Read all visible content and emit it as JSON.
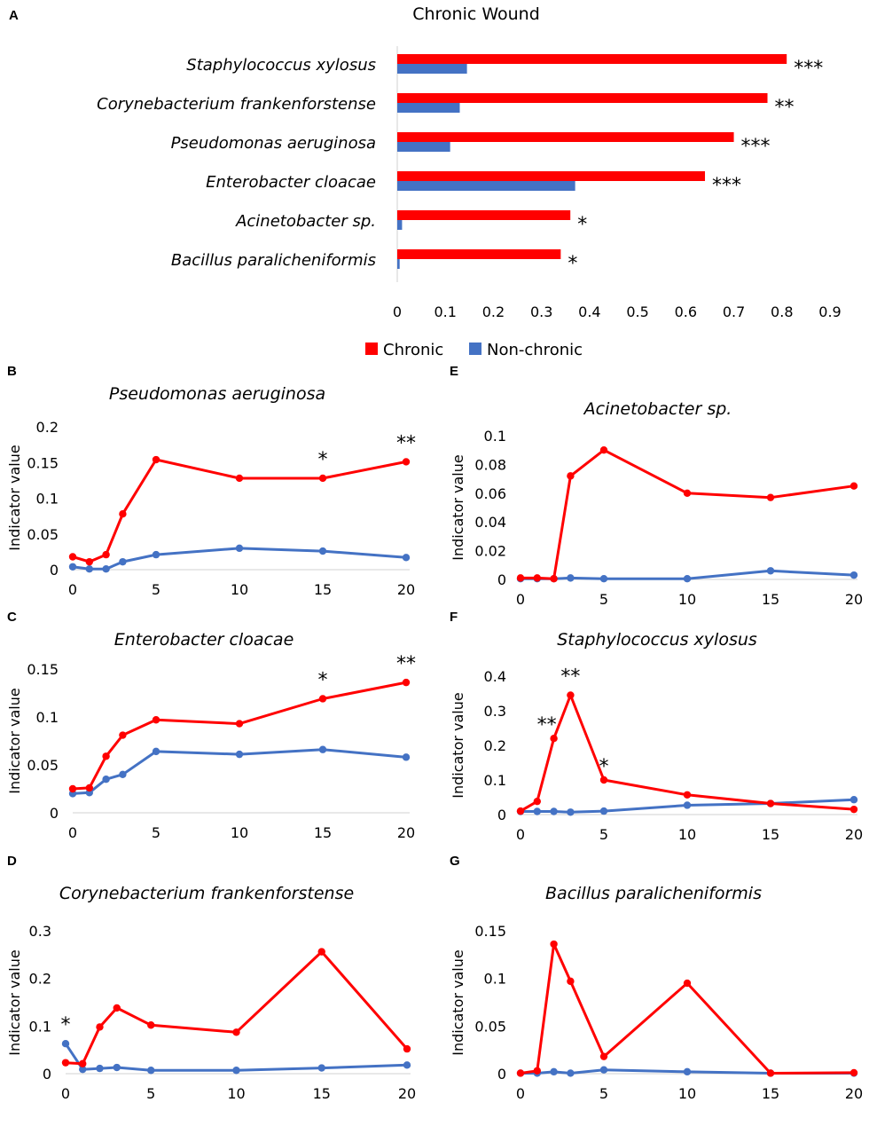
{
  "chart_data": [
    {
      "panel": "A",
      "type": "bar",
      "orientation": "horizontal",
      "title": "Chronic Wound",
      "categories": [
        "Staphylococcus xylosus",
        "Corynebacterium frankenforstense",
        "Pseudomonas aeruginosa",
        "Enterobacter cloacae",
        "Acinetobacter sp.",
        "Bacillus paralicheniformis"
      ],
      "series": [
        {
          "name": "Chronic",
          "color": "#ff0000",
          "values": [
            0.81,
            0.77,
            0.7,
            0.64,
            0.36,
            0.34
          ]
        },
        {
          "name": "Non-chronic",
          "color": "#4472c4",
          "values": [
            0.145,
            0.13,
            0.11,
            0.37,
            0.01,
            0.005
          ]
        }
      ],
      "significance": [
        "***",
        "**",
        "***",
        "***",
        "*",
        "*"
      ],
      "xlim": [
        0,
        0.9
      ],
      "xticks": [
        "0",
        "0.1",
        "0.2",
        "0.3",
        "0.4",
        "0.5",
        "0.6",
        "0.7",
        "0.8",
        "0.9"
      ],
      "legend_position": "bottom"
    },
    {
      "panel": "B",
      "type": "line",
      "title": "Pseudomonas aeruginosa",
      "ylabel": "Indicator value",
      "x": [
        0,
        1,
        2,
        3,
        5,
        10,
        15,
        20
      ],
      "ylim": [
        0,
        0.2
      ],
      "yticks": [
        "0",
        "0.05",
        "0.1",
        "0.15",
        "0.2"
      ],
      "xticks": [
        "0",
        "5",
        "10",
        "15",
        "20"
      ],
      "series": [
        {
          "name": "Chronic",
          "color": "#ff0000",
          "values": [
            0.018,
            0.011,
            0.021,
            0.078,
            0.154,
            0.128,
            0.128,
            0.151
          ]
        },
        {
          "name": "Non-chronic",
          "color": "#4472c4",
          "values": [
            0.004,
            0.001,
            0.001,
            0.011,
            0.021,
            0.03,
            0.026,
            0.017
          ]
        }
      ],
      "annotations": [
        {
          "x": 15,
          "text": "*"
        },
        {
          "x": 20,
          "text": "**"
        }
      ]
    },
    {
      "panel": "C",
      "type": "line",
      "title": "Enterobacter cloacae",
      "ylabel": "Indicator value",
      "x": [
        0,
        1,
        2,
        3,
        5,
        10,
        15,
        20
      ],
      "ylim": [
        0,
        0.15
      ],
      "yticks": [
        "0",
        "0.05",
        "0.1",
        "0.15"
      ],
      "xticks": [
        "0",
        "5",
        "10",
        "15",
        "20"
      ],
      "series": [
        {
          "name": "Chronic",
          "color": "#ff0000",
          "values": [
            0.025,
            0.026,
            0.059,
            0.081,
            0.097,
            0.093,
            0.119,
            0.136
          ]
        },
        {
          "name": "Non-chronic",
          "color": "#4472c4",
          "values": [
            0.02,
            0.021,
            0.035,
            0.04,
            0.064,
            0.061,
            0.066,
            0.058
          ]
        }
      ],
      "annotations": [
        {
          "x": 15,
          "text": "*"
        },
        {
          "x": 20,
          "text": "**"
        }
      ]
    },
    {
      "panel": "D",
      "type": "line",
      "title": "Corynebacterium frankenforstense",
      "ylabel": "Indicator value",
      "x": [
        0,
        1,
        2,
        3,
        5,
        10,
        15,
        20
      ],
      "ylim": [
        0,
        0.3
      ],
      "yticks": [
        "0",
        "0.1",
        "0.2",
        "0.3"
      ],
      "xticks": [
        "0",
        "5",
        "10",
        "15",
        "20"
      ],
      "series": [
        {
          "name": "Chronic",
          "color": "#ff0000",
          "values": [
            0.023,
            0.021,
            0.098,
            0.138,
            0.102,
            0.087,
            0.256,
            0.052
          ]
        },
        {
          "name": "Non-chronic",
          "color": "#4472c4",
          "values": [
            0.063,
            0.009,
            0.011,
            0.013,
            0.007,
            0.007,
            0.012,
            0.018
          ]
        }
      ],
      "annotations": [
        {
          "x": 0,
          "text": "*"
        }
      ]
    },
    {
      "panel": "E",
      "type": "line",
      "title": "Acinetobacter sp.",
      "ylabel": "Indicator value",
      "x": [
        0,
        1,
        2,
        3,
        5,
        10,
        15,
        20
      ],
      "ylim": [
        0,
        0.1
      ],
      "yticks": [
        "0",
        "0.02",
        "0.04",
        "0.06",
        "0.08",
        "0.1"
      ],
      "xticks": [
        "0",
        "5",
        "10",
        "15",
        "20"
      ],
      "series": [
        {
          "name": "Chronic",
          "color": "#ff0000",
          "values": [
            0.001,
            0.001,
            0.0005,
            0.072,
            0.09,
            0.06,
            0.057,
            0.065
          ]
        },
        {
          "name": "Non-chronic",
          "color": "#4472c4",
          "values": [
            0.0005,
            0.0005,
            0.0005,
            0.001,
            0.0005,
            0.0005,
            0.006,
            0.003
          ]
        }
      ],
      "annotations": []
    },
    {
      "panel": "F",
      "type": "line",
      "title": "Staphylococcus xylosus",
      "ylabel": "Indicator value",
      "x": [
        0,
        1,
        2,
        3,
        5,
        10,
        15,
        20
      ],
      "ylim": [
        0,
        0.4
      ],
      "yticks": [
        "0",
        "0.1",
        "0.2",
        "0.3",
        "0.4"
      ],
      "xticks": [
        "0",
        "5",
        "10",
        "15",
        "20"
      ],
      "series": [
        {
          "name": "Chronic",
          "color": "#ff0000",
          "values": [
            0.01,
            0.038,
            0.22,
            0.345,
            0.1,
            0.057,
            0.032,
            0.015
          ]
        },
        {
          "name": "Non-chronic",
          "color": "#4472c4",
          "values": [
            0.009,
            0.009,
            0.009,
            0.007,
            0.01,
            0.027,
            0.032,
            0.043
          ]
        }
      ],
      "annotations": [
        {
          "x": 2,
          "text": "**"
        },
        {
          "x": 3,
          "text": "**"
        },
        {
          "x": 5,
          "text": "*"
        }
      ]
    },
    {
      "panel": "G",
      "type": "line",
      "title": "Bacillus paralicheniformis",
      "ylabel": "Indicator value",
      "x": [
        0,
        1,
        2,
        3,
        5,
        10,
        15,
        20
      ],
      "ylim": [
        0,
        0.15
      ],
      "yticks": [
        "0",
        "0.05",
        "0.1",
        "0.15"
      ],
      "xticks": [
        "0",
        "5",
        "10",
        "15",
        "20"
      ],
      "series": [
        {
          "name": "Chronic",
          "color": "#ff0000",
          "values": [
            0.0005,
            0.003,
            0.136,
            0.097,
            0.018,
            0.095,
            0.0005,
            0.001
          ]
        },
        {
          "name": "Non-chronic",
          "color": "#4472c4",
          "values": [
            0.0005,
            0.0005,
            0.002,
            0.0005,
            0.004,
            0.002,
            0.0005,
            0.0005
          ]
        }
      ],
      "annotations": []
    }
  ]
}
